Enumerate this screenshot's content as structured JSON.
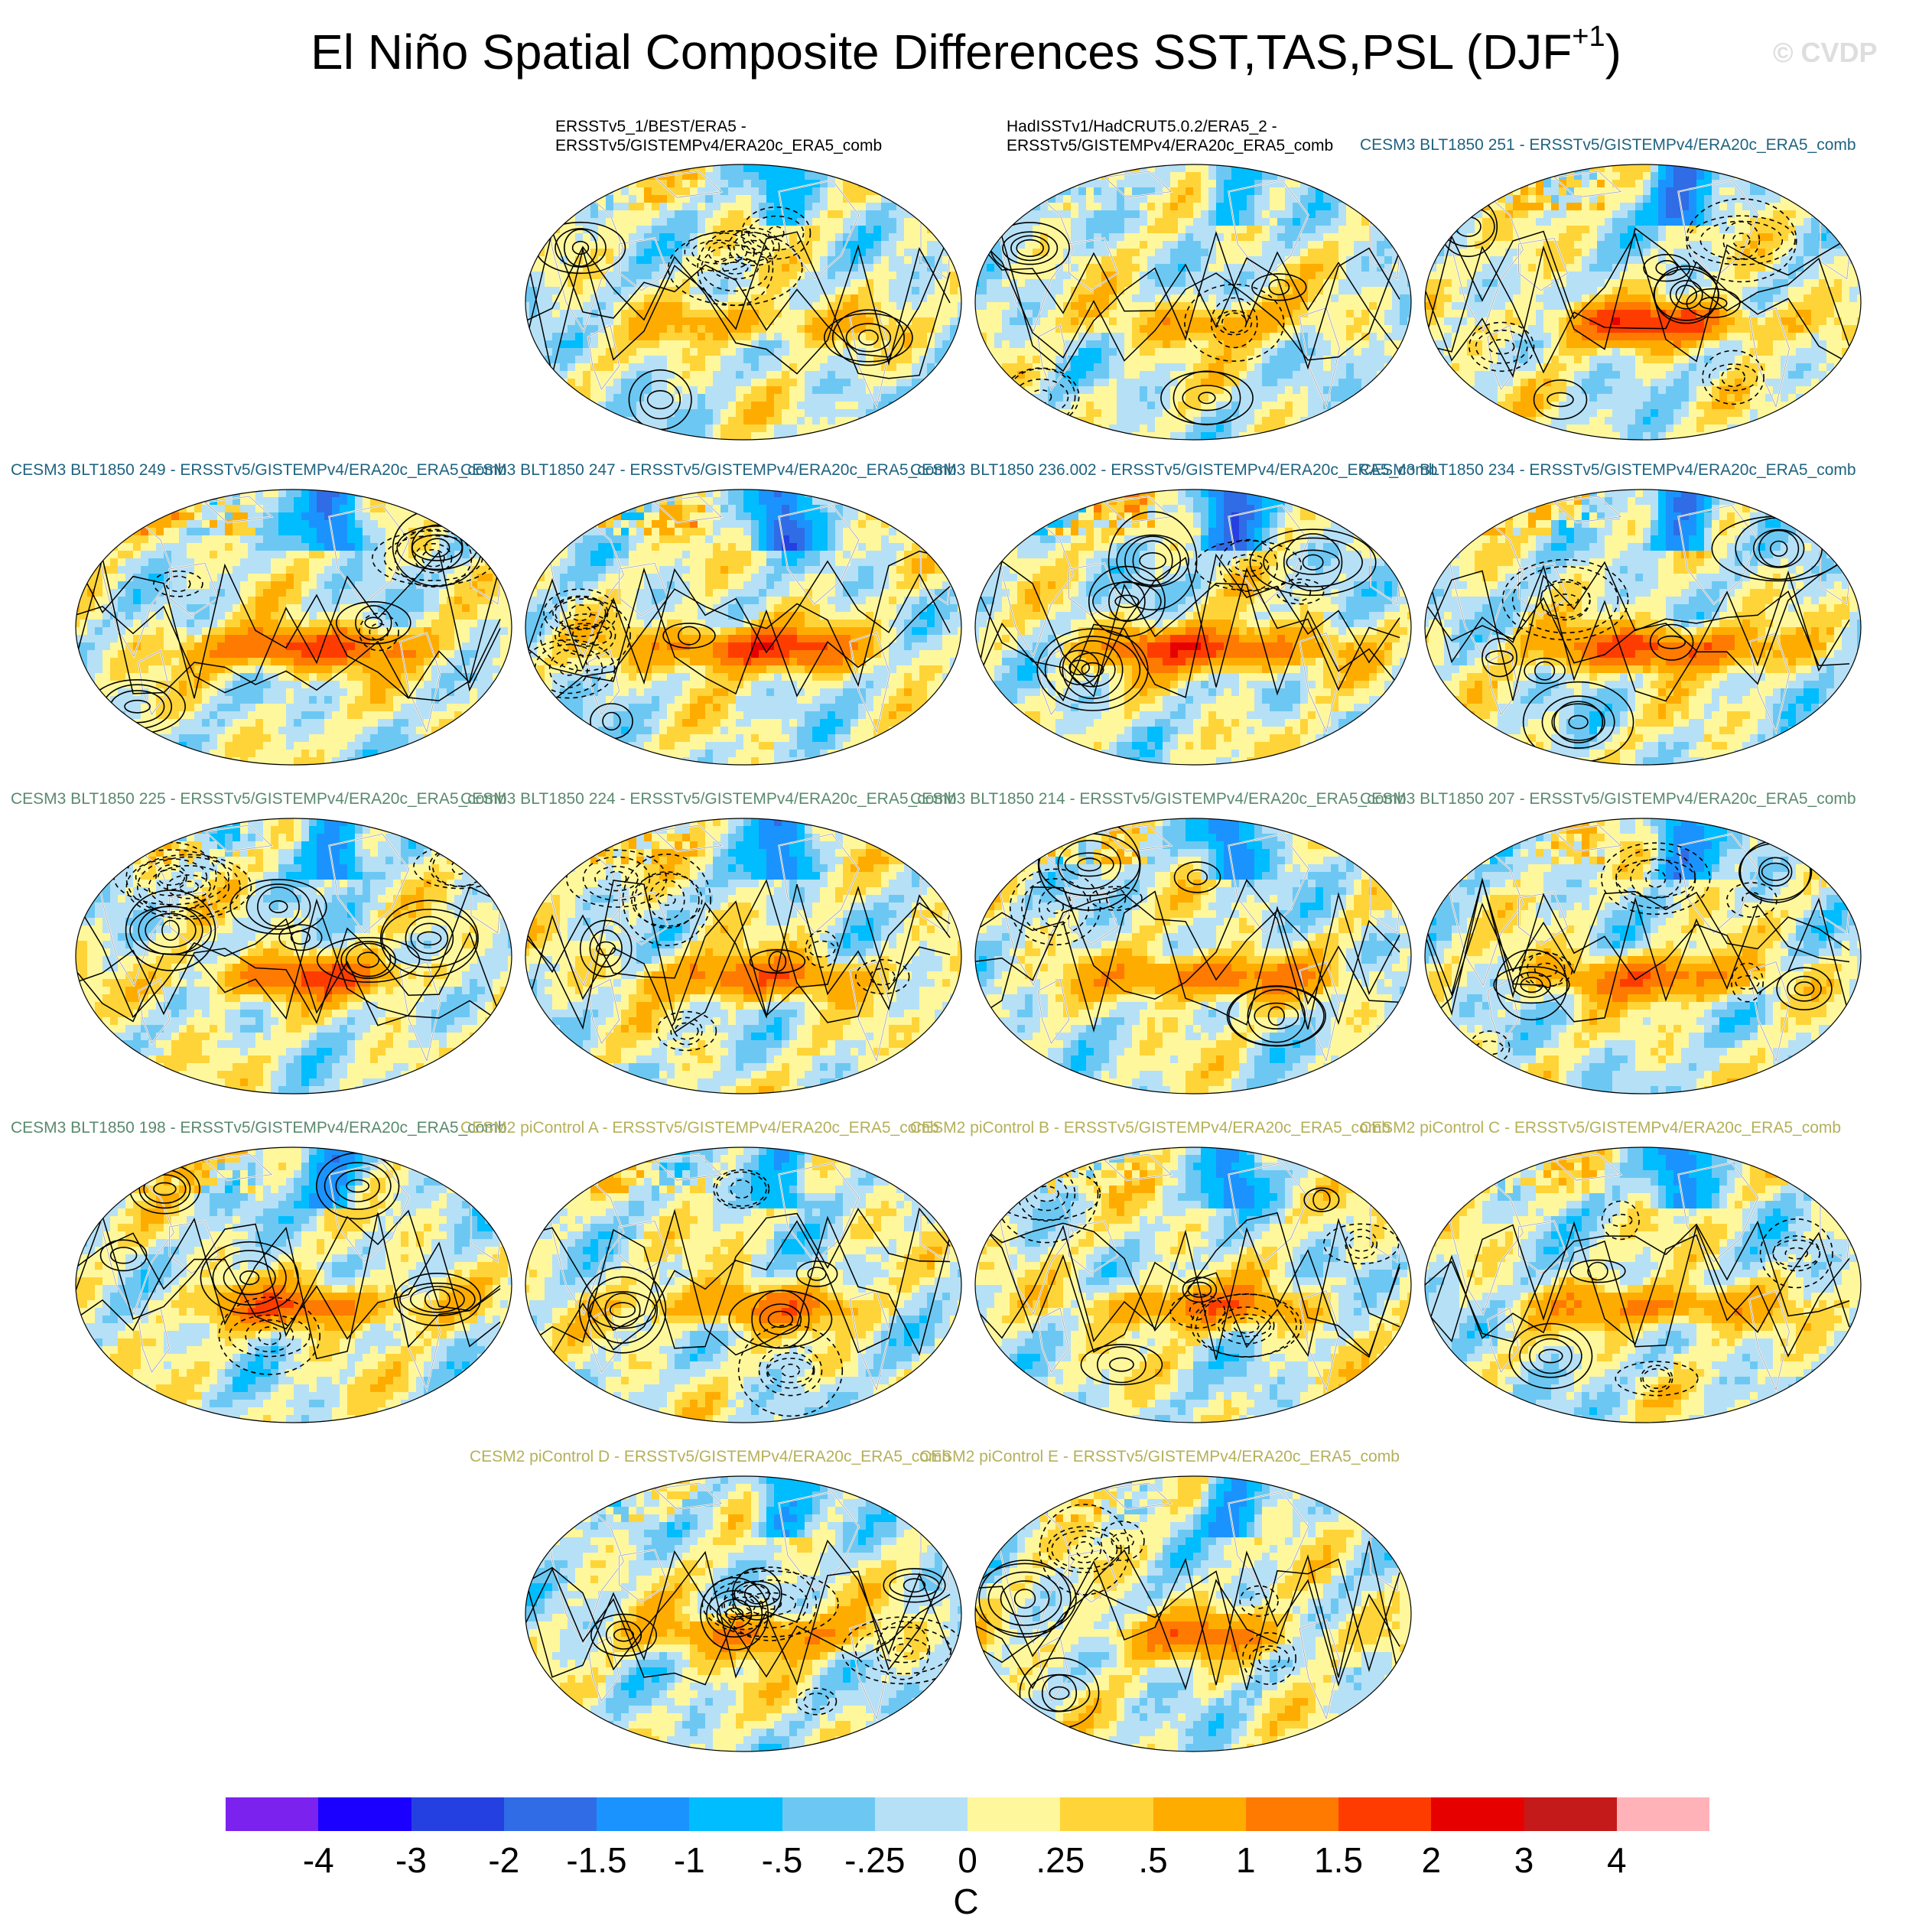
{
  "figure": {
    "title_main": "El Niño Spatial Composite Differences SST,TAS,PSL (DJF",
    "title_sup": "+1",
    "title_close": ")",
    "watermark": "© CVDP"
  },
  "panels": [
    {
      "label_line1": "ERSSTv5_1/BEST/ERA5 -",
      "label_line2": "ERSSTv5/GISTEMPv4/ERA20c_ERA5_comb",
      "label_color": "#000000",
      "amplitude": 0.8
    },
    {
      "label_line1": "HadISSTv1/HadCRUT5.0.2/ERA5_2 -",
      "label_line2": "ERSSTv5/GISTEMPv4/ERA20c_ERA5_comb",
      "label_color": "#000000",
      "amplitude": 0.8
    },
    {
      "label_line1": "CESM3 BLT1850 251 - ERSSTv5/GISTEMPv4/ERA20c_ERA5_comb",
      "label_line2": "",
      "label_color": "#1f6380",
      "amplitude": 1.8
    },
    {
      "label_line1": "CESM3 BLT1850 249 - ERSSTv5/GISTEMPv4/ERA20c_ERA5_comb",
      "label_line2": "",
      "label_color": "#1f6380",
      "amplitude": 1.8
    },
    {
      "label_line1": "CESM3 BLT1850 247 - ERSSTv5/GISTEMPv4/ERA20c_ERA5_comb",
      "label_line2": "",
      "label_color": "#1f6380",
      "amplitude": 1.9
    },
    {
      "label_line1": "CESM3 BLT1850 236.002 - ERSSTv5/GISTEMPv4/ERA20c_ERA5_comb",
      "label_line2": "",
      "label_color": "#1f6380",
      "amplitude": 1.9
    },
    {
      "label_line1": "CESM3 BLT1850 234 - ERSSTv5/GISTEMPv4/ERA20c_ERA5_comb",
      "label_line2": "",
      "label_color": "#1f6380",
      "amplitude": 1.8
    },
    {
      "label_line1": "CESM3 BLT1850 225 - ERSSTv5/GISTEMPv4/ERA20c_ERA5_comb",
      "label_line2": "",
      "label_color": "#5a8a6e",
      "amplitude": 1.5
    },
    {
      "label_line1": "CESM3 BLT1850 224 - ERSSTv5/GISTEMPv4/ERA20c_ERA5_comb",
      "label_line2": "",
      "label_color": "#5a8a6e",
      "amplitude": 1.4
    },
    {
      "label_line1": "CESM3 BLT1850 214 - ERSSTv5/GISTEMPv4/ERA20c_ERA5_comb",
      "label_line2": "",
      "label_color": "#5a8a6e",
      "amplitude": 1.5
    },
    {
      "label_line1": "CESM3 BLT1850 207 - ERSSTv5/GISTEMPv4/ERA20c_ERA5_comb",
      "label_line2": "",
      "label_color": "#5a8a6e",
      "amplitude": 1.4
    },
    {
      "label_line1": "CESM3 BLT1850 198 - ERSSTv5/GISTEMPv4/ERA20c_ERA5_comb",
      "label_line2": "",
      "label_color": "#5a8a6e",
      "amplitude": 1.4
    },
    {
      "label_line1": "CESM2 piControl A - ERSSTv5/GISTEMPv4/ERA20c_ERA5_comb",
      "label_line2": "",
      "label_color": "#b5b05a",
      "amplitude": 1.2
    },
    {
      "label_line1": "CESM2 piControl B - ERSSTv5/GISTEMPv4/ERA20c_ERA5_comb",
      "label_line2": "",
      "label_color": "#b5b05a",
      "amplitude": 1.2
    },
    {
      "label_line1": "CESM2 piControl C - ERSSTv5/GISTEMPv4/ERA20c_ERA5_comb",
      "label_line2": "",
      "label_color": "#b5b05a",
      "amplitude": 1.2
    },
    {
      "label_line1": "CESM2 piControl D - ERSSTv5/GISTEMPv4/ERA20c_ERA5_comb",
      "label_line2": "",
      "label_color": "#b5b05a",
      "amplitude": 1.2
    },
    {
      "label_line1": "CESM2 piControl E - ERSSTv5/GISTEMPv4/ERA20c_ERA5_comb",
      "label_line2": "",
      "label_color": "#b5b05a",
      "amplitude": 1.2
    }
  ],
  "colorbar": {
    "colors": [
      "#7b22ee",
      "#1b00ff",
      "#2540e0",
      "#2f6ce6",
      "#1b93ff",
      "#00bdff",
      "#6cc8f3",
      "#b6e0f6",
      "#fff79c",
      "#ffd438",
      "#ffac00",
      "#ff7a00",
      "#ff3c00",
      "#e70000",
      "#c41a1a",
      "#ffb3b8"
    ],
    "ticks": [
      "-4",
      "-3",
      "-2",
      "-1.5",
      "-1",
      "-.5",
      "-.25",
      "0",
      ".25",
      ".5",
      "1",
      "1.5",
      "2",
      "3",
      "4"
    ],
    "unit": "C"
  },
  "chart_data": {
    "type": "heatmap",
    "title": "El Niño Spatial Composite Differences SST,TAS,PSL (DJF+1)",
    "variables": [
      "SST",
      "TAS",
      "PSL"
    ],
    "season": "DJF+1",
    "projection": "global map (shaded SST/TAS differences, PSL difference contours)",
    "color_levels": [
      -4,
      -3,
      -2,
      -1.5,
      -1,
      -0.5,
      -0.25,
      0,
      0.25,
      0.5,
      1,
      1.5,
      2,
      3,
      4
    ],
    "units": "C",
    "panel_count": 17,
    "reference": "ERSSTv5/GISTEMPv4/ERA20c_ERA5_comb"
  }
}
